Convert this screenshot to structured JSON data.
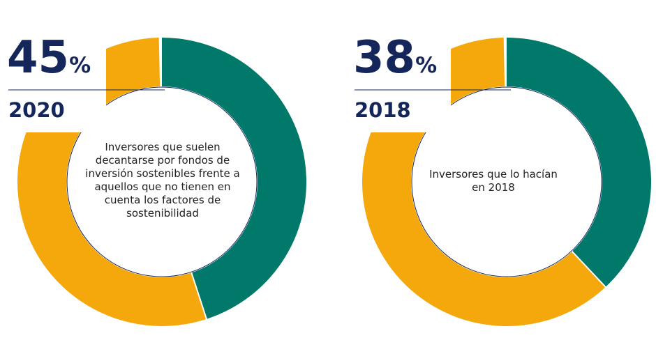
{
  "colors": {
    "highlight": "#00786a",
    "rest": "#f5a80c",
    "text": "#15265a",
    "line": "#15265a"
  },
  "chart_data": [
    {
      "type": "donut",
      "value_percent": 45,
      "value_label": "45",
      "unit": "%",
      "year": "2020",
      "caption": "Inversores que suelen decantarse por fondos de inversión sostenibles frente a aquellos que no tienen en cuenta los factores de sostenibilidad"
    },
    {
      "type": "donut",
      "value_percent": 38,
      "value_label": "38",
      "unit": "%",
      "year": "2018",
      "caption": "Inversores que lo hacían en 2018"
    }
  ]
}
